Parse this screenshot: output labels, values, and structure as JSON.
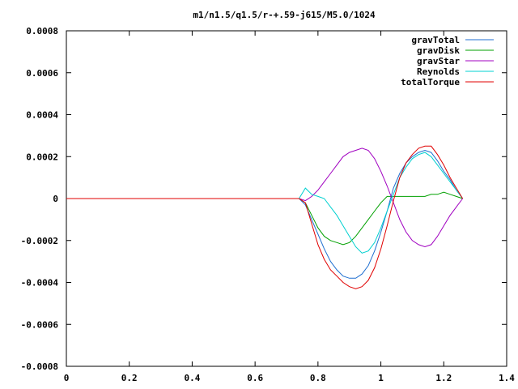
{
  "chart_data": {
    "type": "line",
    "title": "m1/n1.5/q1.5/r-+.59-j615/M5.0/1024",
    "xlabel": "",
    "ylabel": "",
    "xlim": [
      0,
      1.4
    ],
    "ylim": [
      -0.0008,
      0.0008
    ],
    "grid": false,
    "legend_position": "top-right",
    "x_ticks": [
      0,
      0.2,
      0.4,
      0.6,
      0.8,
      1.0,
      1.2,
      1.4
    ],
    "x_tick_labels": [
      "0",
      "0.2",
      "0.4",
      "0.6",
      "0.8",
      "1",
      "1.2",
      "1.4"
    ],
    "y_ticks": [
      -0.0008,
      -0.0006,
      -0.0004,
      -0.0002,
      0,
      0.0002,
      0.0004,
      0.0006,
      0.0008
    ],
    "y_tick_labels": [
      "-0.0008",
      "-0.0006",
      "-0.0004",
      "-0.0002",
      "0",
      "0.0002",
      "0.0004",
      "0.0006",
      "0.0008"
    ],
    "series": [
      {
        "name": "gravTotal",
        "color": "#1f6fd0",
        "x": [
          0,
          0.74,
          0.76,
          0.78,
          0.8,
          0.82,
          0.84,
          0.86,
          0.88,
          0.9,
          0.92,
          0.94,
          0.96,
          0.98,
          1.0,
          1.02,
          1.04,
          1.06,
          1.08,
          1.1,
          1.12,
          1.14,
          1.16,
          1.18,
          1.2,
          1.22,
          1.24,
          1.26
        ],
        "y": [
          0,
          0,
          -3e-05,
          -0.0001,
          -0.00017,
          -0.00024,
          -0.0003,
          -0.00034,
          -0.00037,
          -0.00038,
          -0.00038,
          -0.00036,
          -0.00032,
          -0.00025,
          -0.00016,
          -6e-05,
          5e-05,
          0.00012,
          0.00017,
          0.0002,
          0.00022,
          0.00023,
          0.00022,
          0.00018,
          0.00013,
          9e-05,
          4e-05,
          0
        ]
      },
      {
        "name": "gravDisk",
        "color": "#00a000",
        "x": [
          0,
          0.74,
          0.76,
          0.78,
          0.8,
          0.82,
          0.84,
          0.86,
          0.88,
          0.9,
          0.92,
          0.94,
          0.96,
          0.98,
          1.0,
          1.02,
          1.04,
          1.06,
          1.08,
          1.1,
          1.12,
          1.14,
          1.16,
          1.18,
          1.2,
          1.22,
          1.24,
          1.26
        ],
        "y": [
          0,
          0,
          -2e-05,
          -8e-05,
          -0.00014,
          -0.00018,
          -0.0002,
          -0.00021,
          -0.00022,
          -0.00021,
          -0.00018,
          -0.00014,
          -0.0001,
          -6e-05,
          -2e-05,
          1e-05,
          1e-05,
          1e-05,
          1e-05,
          1e-05,
          1e-05,
          1e-05,
          2e-05,
          2e-05,
          3e-05,
          2e-05,
          1e-05,
          0
        ]
      },
      {
        "name": "gravStar",
        "color": "#a000c0",
        "x": [
          0,
          0.74,
          0.76,
          0.78,
          0.8,
          0.82,
          0.84,
          0.86,
          0.88,
          0.9,
          0.92,
          0.94,
          0.96,
          0.98,
          1.0,
          1.02,
          1.04,
          1.06,
          1.08,
          1.1,
          1.12,
          1.14,
          1.16,
          1.18,
          1.2,
          1.22,
          1.24,
          1.26
        ],
        "y": [
          0,
          0,
          -1e-05,
          1e-05,
          4e-05,
          8e-05,
          0.00012,
          0.00016,
          0.0002,
          0.00022,
          0.00023,
          0.00024,
          0.00023,
          0.00019,
          0.00013,
          6e-05,
          -2e-05,
          -0.0001,
          -0.00016,
          -0.0002,
          -0.00022,
          -0.00023,
          -0.00022,
          -0.00018,
          -0.00013,
          -8e-05,
          -4e-05,
          0
        ]
      },
      {
        "name": "Reynolds",
        "color": "#00d0d0",
        "x": [
          0,
          0.74,
          0.76,
          0.78,
          0.8,
          0.82,
          0.84,
          0.86,
          0.88,
          0.9,
          0.92,
          0.94,
          0.96,
          0.98,
          1.0,
          1.02,
          1.04,
          1.06,
          1.08,
          1.1,
          1.12,
          1.14,
          1.16,
          1.18,
          1.2,
          1.22,
          1.24,
          1.26
        ],
        "y": [
          0,
          0,
          5e-05,
          2e-05,
          1e-05,
          0,
          -4e-05,
          -8e-05,
          -0.00013,
          -0.00018,
          -0.00023,
          -0.00026,
          -0.00025,
          -0.00021,
          -0.00014,
          -6e-05,
          2e-05,
          0.0001,
          0.00015,
          0.00019,
          0.00021,
          0.00022,
          0.0002,
          0.00016,
          0.00012,
          8e-05,
          4e-05,
          0
        ]
      },
      {
        "name": "totalTorque",
        "color": "#e00000",
        "x": [
          0,
          0.74,
          0.76,
          0.78,
          0.8,
          0.82,
          0.84,
          0.86,
          0.88,
          0.9,
          0.92,
          0.94,
          0.96,
          0.98,
          1.0,
          1.02,
          1.04,
          1.06,
          1.08,
          1.1,
          1.12,
          1.14,
          1.16,
          1.18,
          1.2,
          1.22,
          1.24,
          1.26
        ],
        "y": [
          0,
          0,
          -2e-05,
          -0.00012,
          -0.00022,
          -0.00029,
          -0.00034,
          -0.00037,
          -0.0004,
          -0.00042,
          -0.00043,
          -0.00042,
          -0.00039,
          -0.00033,
          -0.00024,
          -0.00013,
          -1e-05,
          0.0001,
          0.00017,
          0.00021,
          0.00024,
          0.00025,
          0.00025,
          0.00021,
          0.00016,
          0.0001,
          5e-05,
          0
        ]
      }
    ]
  }
}
